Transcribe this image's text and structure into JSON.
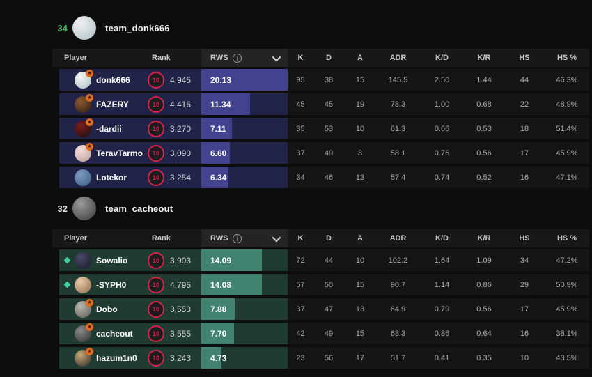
{
  "page": {
    "background": "#0d0d0d"
  },
  "columns": {
    "player": "Player",
    "rank": "Rank",
    "rws": "RWS",
    "stats": [
      "K",
      "D",
      "A",
      "ADR",
      "K/D",
      "K/R",
      "HS",
      "HS %"
    ]
  },
  "icons": {
    "rws_info": "info-circle-icon",
    "rws_dropdown": "chevron-down-icon",
    "rank_badge": "faceit-level-10-icon",
    "avatar_badge": "star-badge-icon",
    "watching": "diamond-icon"
  },
  "colors": {
    "rank_red": "#d8234a",
    "badge_orange": "#dd6b20",
    "diamond_teal": "#3dcf9e",
    "header_bg": "#181818",
    "stats_bg": "#151515"
  },
  "rws_scale_max": 20.13,
  "rank_level": "10",
  "teams": [
    {
      "score": "34",
      "score_color": "#44b45e",
      "name": "team_donk666",
      "avatar": [
        "#f0f0f0",
        "#aebfc4"
      ],
      "row_bg": "#212348",
      "bar_color": "#42428e",
      "players": [
        {
          "name": "donk666",
          "rank": "4,945",
          "rws": "20.13",
          "badge": true,
          "diamond": false,
          "avatar": [
            "#f4f4f4",
            "#aebfc4"
          ],
          "stats": [
            "95",
            "38",
            "15",
            "145.5",
            "2.50",
            "1.44",
            "44",
            "46.3%"
          ]
        },
        {
          "name": "FAZERY",
          "rank": "4,416",
          "rws": "11.34",
          "badge": true,
          "diamond": false,
          "avatar": [
            "#8a5a30",
            "#2e1c12"
          ],
          "stats": [
            "45",
            "45",
            "19",
            "78.3",
            "1.00",
            "0.68",
            "22",
            "48.9%"
          ]
        },
        {
          "name": "-dardii",
          "rank": "3,270",
          "rws": "7.11",
          "badge": true,
          "diamond": false,
          "avatar": [
            "#7a1f1f",
            "#1a0d0d"
          ],
          "stats": [
            "35",
            "53",
            "10",
            "61.3",
            "0.66",
            "0.53",
            "18",
            "51.4%"
          ]
        },
        {
          "name": "TeravTarmo",
          "rank": "3,090",
          "rws": "6.60",
          "badge": true,
          "diamond": false,
          "avatar": [
            "#f0dcd8",
            "#c0a09c"
          ],
          "stats": [
            "37",
            "49",
            "8",
            "58.1",
            "0.76",
            "0.56",
            "17",
            "45.9%"
          ]
        },
        {
          "name": "Lotekor",
          "rank": "3,254",
          "rws": "6.34",
          "badge": false,
          "diamond": false,
          "avatar": [
            "#7c9cc4",
            "#3c5a80"
          ],
          "stats": [
            "34",
            "46",
            "13",
            "57.4",
            "0.74",
            "0.52",
            "16",
            "47.1%"
          ]
        }
      ]
    },
    {
      "score": "32",
      "score_color": "#dedede",
      "name": "team_cacheout",
      "avatar": [
        "#9a9a9a",
        "#3a3a3a"
      ],
      "row_bg": "#1f3b32",
      "bar_color": "#42836f",
      "players": [
        {
          "name": "Sowalio",
          "rank": "3,903",
          "rws": "14.09",
          "badge": false,
          "diamond": true,
          "avatar": [
            "#4a4a6a",
            "#17172a"
          ],
          "stats": [
            "72",
            "44",
            "10",
            "102.2",
            "1.64",
            "1.09",
            "34",
            "47.2%"
          ]
        },
        {
          "name": "-SYPH0",
          "rank": "4,795",
          "rws": "14.08",
          "badge": false,
          "diamond": true,
          "avatar": [
            "#e8c9a8",
            "#8a6a4a"
          ],
          "stats": [
            "57",
            "50",
            "15",
            "90.7",
            "1.14",
            "0.86",
            "29",
            "50.9%"
          ]
        },
        {
          "name": "Dobo",
          "rank": "3,553",
          "rws": "7.88",
          "badge": true,
          "diamond": false,
          "avatar": [
            "#b8b8b0",
            "#5a5a52"
          ],
          "stats": [
            "37",
            "47",
            "13",
            "64.9",
            "0.79",
            "0.56",
            "17",
            "45.9%"
          ]
        },
        {
          "name": "cacheout",
          "rank": "3,555",
          "rws": "7.70",
          "badge": true,
          "diamond": false,
          "avatar": [
            "#8a8a8a",
            "#2e2e2e"
          ],
          "stats": [
            "42",
            "49",
            "15",
            "68.3",
            "0.86",
            "0.64",
            "16",
            "38.1%"
          ]
        },
        {
          "name": "hazum1n0",
          "rank": "3,243",
          "rws": "4.73",
          "badge": true,
          "diamond": false,
          "avatar": [
            "#c9a878",
            "#2a2620"
          ],
          "stats": [
            "23",
            "56",
            "17",
            "51.7",
            "0.41",
            "0.35",
            "10",
            "43.5%"
          ]
        }
      ]
    }
  ]
}
